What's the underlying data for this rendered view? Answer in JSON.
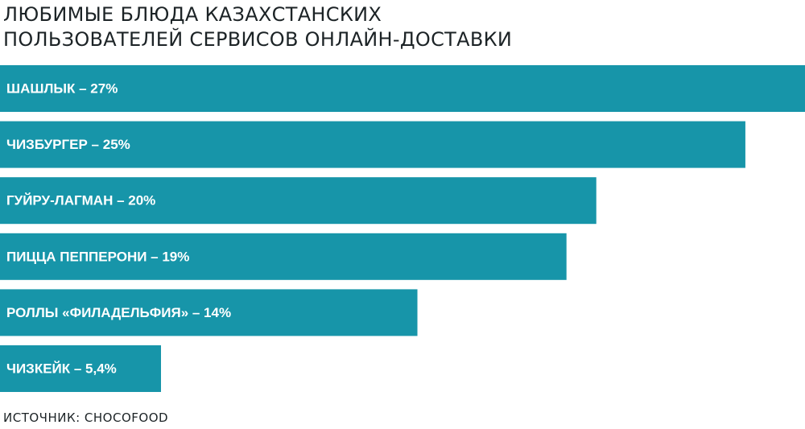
{
  "chart_data": {
    "type": "hbar",
    "title": [
      "ЛЮБИМЫЕ БЛЮДА КАЗАХСТАНСКИХ",
      "ПОЛЬЗОВАТЕЛЕЙ СЕРВИСОВ ОНЛАЙН-ДОСТАВКИ"
    ],
    "categories": [
      "ШАШЛЫК – 27%",
      "ЧИЗБУРГЕР – 25%",
      "ГУЙРУ-ЛАГМАН – 20%",
      "ПИЦЦА ПЕППЕРОНИ – 19%",
      "РОЛЛЫ «ФИЛАДЕЛЬФИЯ» – 14%",
      "ЧИЗКЕЙК – 5,4%"
    ],
    "values": [
      27,
      25,
      20,
      19,
      14,
      5.4
    ],
    "color": "#1795a9",
    "xlim": [
      0,
      27
    ],
    "source": "ИСТОЧНИК: CHOCOFOOD"
  }
}
